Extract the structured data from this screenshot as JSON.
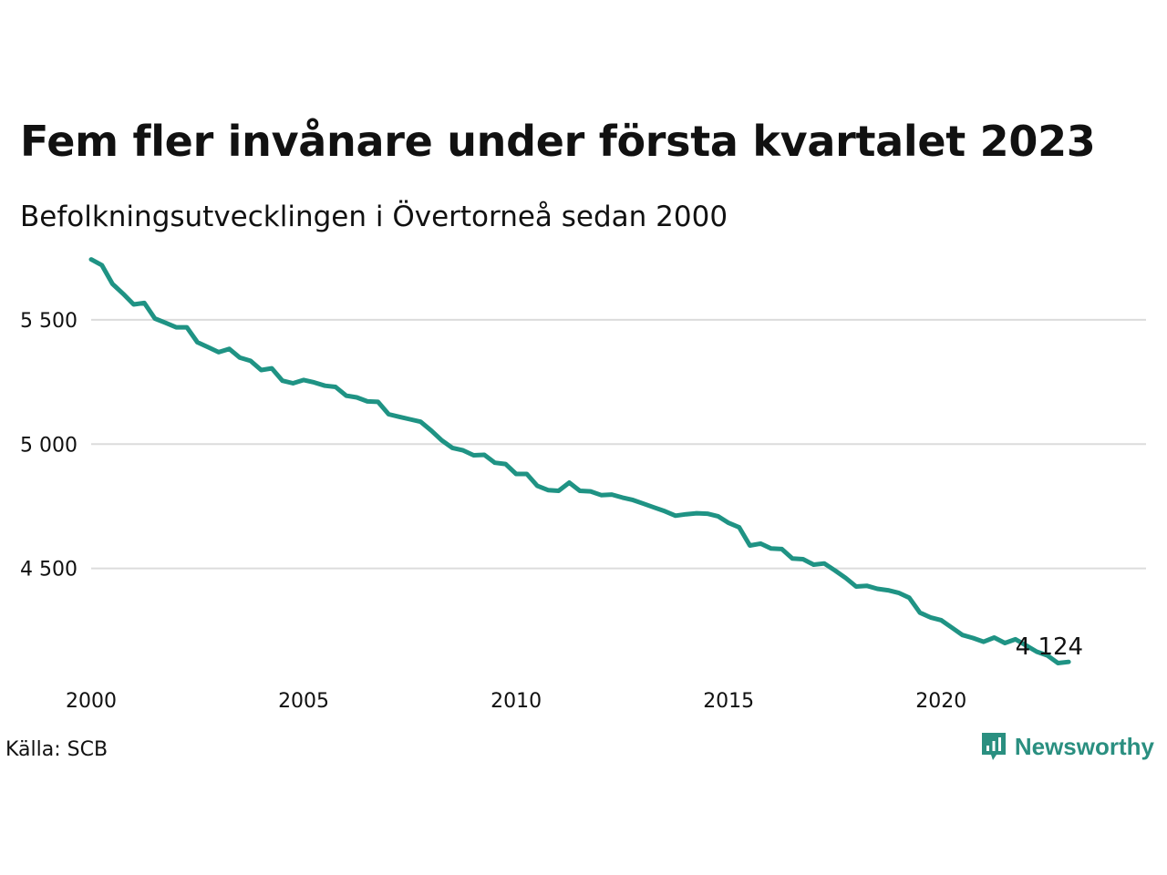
{
  "brand": {
    "name": "Newsworthy",
    "color": "#2a8f80"
  },
  "source": "Källa: SCB",
  "chart_data": {
    "type": "line",
    "title": "Fem fler invånare under första kvartalet 2023",
    "subtitle": "Befolkningsutvecklingen i Övertorneå sedan 2000",
    "xlabel": "",
    "ylabel": "",
    "x_ticks": [
      "2000",
      "2005",
      "2010",
      "2015",
      "2020"
    ],
    "y_ticks": [
      "4 500",
      "5 000",
      "5 500"
    ],
    "xlim": [
      2000,
      2024.8
    ],
    "ylim": [
      4055,
      5760
    ],
    "grid": true,
    "line_color": "#1f9384",
    "end_label": "4 124",
    "series": [
      {
        "x": [
          2000.0,
          2000.25,
          2000.5,
          2000.75,
          2001.0,
          2001.25,
          2001.5,
          2001.75,
          2002.0,
          2002.25,
          2002.5,
          2002.75,
          2003.0,
          2003.25,
          2003.5,
          2003.75,
          2004.0,
          2004.25,
          2004.5,
          2004.75,
          2005.0,
          2005.25,
          2005.5,
          2005.75,
          2006.0,
          2006.25,
          2006.5,
          2006.75,
          2007.0,
          2007.25,
          2007.5,
          2007.75,
          2008.0,
          2008.25,
          2008.5,
          2008.75,
          2009.0,
          2009.25,
          2009.5,
          2009.75,
          2010.0,
          2010.25,
          2010.5,
          2010.75,
          2011.0,
          2011.25,
          2011.5,
          2011.75,
          2012.0,
          2012.25,
          2012.5,
          2012.75,
          2013.0,
          2013.25,
          2013.5,
          2013.75,
          2014.0,
          2014.25,
          2014.5,
          2014.75,
          2015.0,
          2015.25,
          2015.5,
          2015.75,
          2016.0,
          2016.25,
          2016.5,
          2016.75,
          2017.0,
          2017.25,
          2017.5,
          2017.75,
          2018.0,
          2018.25,
          2018.5,
          2018.75,
          2019.0,
          2019.25,
          2019.5,
          2019.75,
          2020.0,
          2020.25,
          2020.5,
          2020.75,
          2021.0,
          2021.25,
          2021.5,
          2021.75,
          2022.0,
          2022.25,
          2022.5,
          2022.75,
          2023.0
        ],
        "values": [
          5743,
          5720,
          5645,
          5605,
          5562,
          5568,
          5505,
          5488,
          5470,
          5470,
          5410,
          5390,
          5370,
          5383,
          5348,
          5335,
          5298,
          5305,
          5255,
          5245,
          5258,
          5248,
          5235,
          5230,
          5195,
          5188,
          5172,
          5170,
          5120,
          5110,
          5100,
          5090,
          5055,
          5015,
          4985,
          4975,
          4955,
          4957,
          4925,
          4920,
          4880,
          4880,
          4832,
          4815,
          4812,
          4845,
          4812,
          4810,
          4795,
          4797,
          4785,
          4775,
          4760,
          4745,
          4730,
          4712,
          4718,
          4722,
          4720,
          4710,
          4683,
          4665,
          4592,
          4600,
          4580,
          4578,
          4540,
          4537,
          4515,
          4520,
          4492,
          4462,
          4427,
          4430,
          4418,
          4412,
          4402,
          4382,
          4322,
          4303,
          4292,
          4262,
          4232,
          4220,
          4205,
          4222,
          4200,
          4215,
          4190,
          4165,
          4150,
          4119,
          4124
        ]
      }
    ]
  }
}
